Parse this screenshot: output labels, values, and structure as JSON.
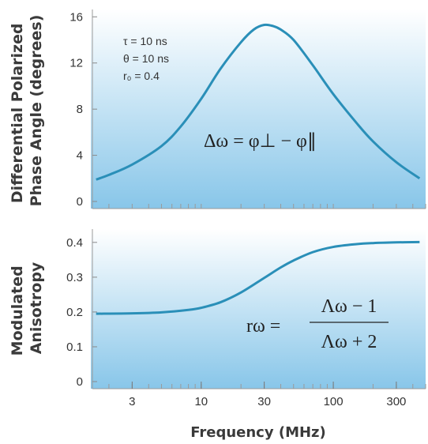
{
  "chart_data": [
    {
      "type": "line",
      "ylabel_line1": "Differential Polarized",
      "ylabel_line2": "Phase Angle (degrees)",
      "x_scale": "log",
      "xlim": [
        1.5,
        500
      ],
      "ylim": [
        0,
        16.5
      ],
      "y_ticks": [
        "0",
        "4",
        "8",
        "12",
        "16"
      ],
      "y_tick_values": [
        0,
        4,
        8,
        12,
        16
      ],
      "params": [
        "τ = 10 ns",
        "θ = 10 ns",
        "r₀ = 0.4"
      ],
      "equation": "Δω = φ⊥ − φ∥",
      "series": [
        {
          "x": [
            1.6,
            2,
            3,
            5,
            7,
            10,
            14,
            20,
            25,
            30,
            35,
            40,
            50,
            70,
            100,
            150,
            200,
            300,
            450
          ],
          "y": [
            1.9,
            2.3,
            3.2,
            4.8,
            6.5,
            8.9,
            11.5,
            13.8,
            14.9,
            15.3,
            15.2,
            14.9,
            14.0,
            11.8,
            9.3,
            6.8,
            5.2,
            3.4,
            2.0
          ]
        }
      ],
      "color": "#2a8fb8"
    },
    {
      "type": "line",
      "ylabel_line1": "Modulated",
      "ylabel_line2": "Anisotropy",
      "x_scale": "log",
      "xlim": [
        1.5,
        500
      ],
      "ylim": [
        0,
        0.42
      ],
      "y_ticks": [
        "0",
        "0.1",
        "0.2",
        "0.3",
        "0.4"
      ],
      "y_tick_values": [
        0,
        0.1,
        0.2,
        0.3,
        0.4
      ],
      "x_ticks": [
        "3",
        "10",
        "30",
        "100",
        "300"
      ],
      "x_tick_values": [
        3,
        10,
        30,
        100,
        300
      ],
      "xlabel": "Frequency (MHz)",
      "equation_lhs": "rω =",
      "equation_num": "Λω − 1",
      "equation_den": "Λω + 2",
      "series": [
        {
          "x": [
            1.6,
            3,
            5,
            8,
            10,
            14,
            20,
            30,
            40,
            50,
            70,
            100,
            150,
            200,
            300,
            450
          ],
          "y": [
            0.195,
            0.196,
            0.199,
            0.206,
            0.212,
            0.228,
            0.256,
            0.298,
            0.328,
            0.348,
            0.372,
            0.387,
            0.395,
            0.398,
            0.4,
            0.401
          ]
        }
      ],
      "color": "#2a8fb8"
    }
  ]
}
